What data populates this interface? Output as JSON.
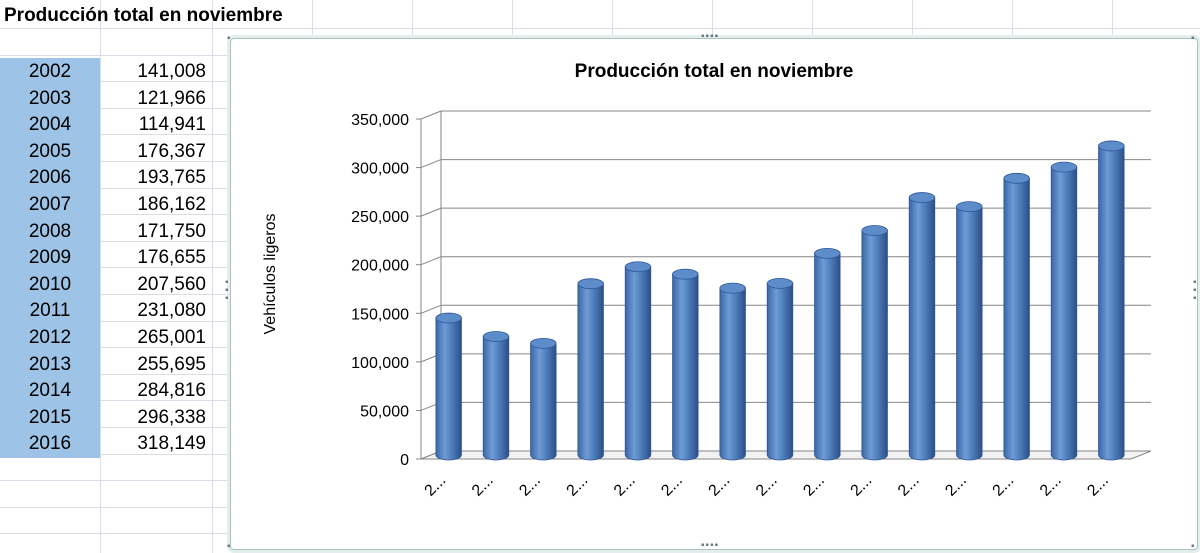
{
  "sheet": {
    "title": "Producción total en noviembre",
    "rows": [
      {
        "year": "2002",
        "value": "141,008"
      },
      {
        "year": "2003",
        "value": "121,966"
      },
      {
        "year": "2004",
        "value": "114,941"
      },
      {
        "year": "2005",
        "value": "176,367"
      },
      {
        "year": "2006",
        "value": "193,765"
      },
      {
        "year": "2007",
        "value": "186,162"
      },
      {
        "year": "2008",
        "value": "171,750"
      },
      {
        "year": "2009",
        "value": "176,655"
      },
      {
        "year": "2010",
        "value": "207,560"
      },
      {
        "year": "2011",
        "value": "231,080"
      },
      {
        "year": "2012",
        "value": "265,001"
      },
      {
        "year": "2013",
        "value": "255,695"
      },
      {
        "year": "2014",
        "value": "284,816"
      },
      {
        "year": "2015",
        "value": "296,338"
      },
      {
        "year": "2016",
        "value": "318,149"
      }
    ]
  },
  "chart_data": {
    "type": "bar",
    "style": "3d-cylinder",
    "title": "Producción total en noviembre",
    "ylabel": "Vehículos ligeros",
    "xlabel": "",
    "ylim": [
      0,
      350000
    ],
    "yticks": [
      "0",
      "50,000",
      "100,000",
      "150,000",
      "200,000",
      "250,000",
      "300,000",
      "350,000"
    ],
    "categories": [
      "2...",
      "2...",
      "2...",
      "2...",
      "2...",
      "2...",
      "2...",
      "2...",
      "2...",
      "2...",
      "2...",
      "2...",
      "2...",
      "2...",
      "2..."
    ],
    "values": [
      141008,
      121966,
      114941,
      176367,
      193765,
      186162,
      171750,
      176655,
      207560,
      231080,
      265001,
      255695,
      284816,
      296338,
      318149
    ],
    "grid": true,
    "legend": "none",
    "colors": {
      "bar": "#4f81bd",
      "bar_dark": "#2f5597",
      "bar_light": "#7aa3d6",
      "grid": "#868686"
    }
  }
}
